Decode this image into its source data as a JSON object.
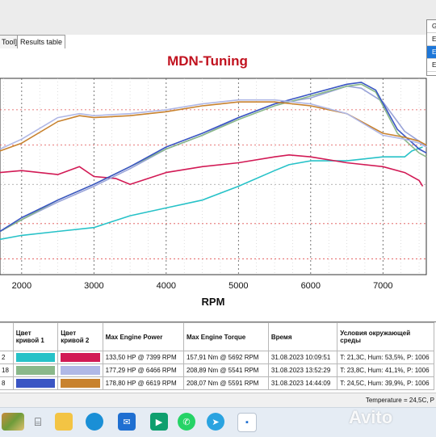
{
  "tabs": [
    "Tool]",
    "Results table"
  ],
  "right_panel": {
    "options": [
      "G",
      "E",
      "E",
      "E"
    ],
    "selected_index": 2
  },
  "chart_data": {
    "type": "line",
    "title": "MDN-Tuning",
    "xlabel": "RPM",
    "ylabel": "",
    "x_ticks": [
      2000,
      3000,
      4000,
      5000,
      6000,
      7000
    ],
    "xlim": [
      1700,
      7600
    ],
    "ylim": [
      0,
      100
    ],
    "grid": true,
    "series": [
      {
        "color": "#27c2c8",
        "x": [
          1700,
          2000,
          2500,
          3000,
          3500,
          4000,
          4500,
          5000,
          5500,
          5700,
          6000,
          6500,
          7000,
          7300,
          7400,
          7550
        ],
        "y": [
          18,
          20,
          22,
          24,
          30,
          34,
          38,
          45,
          53,
          56,
          58,
          58,
          60,
          60,
          63,
          65
        ]
      },
      {
        "color": "#d21a55",
        "x": [
          1700,
          2000,
          2500,
          2800,
          3000,
          3300,
          3500,
          4000,
          4500,
          5000,
          5500,
          5700,
          6000,
          6500,
          7000,
          7300,
          7500,
          7550
        ],
        "y": [
          52,
          53,
          51,
          55,
          50,
          49,
          46,
          52,
          55,
          57,
          60,
          61,
          60,
          57,
          55,
          52,
          48,
          45
        ]
      },
      {
        "color": "#9aa4d9",
        "x": [
          1700,
          2000,
          2500,
          3000,
          3500,
          4000,
          4500,
          5000,
          5500,
          6000,
          6500,
          6700,
          7000,
          7300,
          7500,
          7600
        ],
        "y": [
          22,
          28,
          37,
          45,
          54,
          64,
          71,
          80,
          87,
          90,
          96,
          95,
          88,
          73,
          68,
          65
        ]
      },
      {
        "color": "#8ab88a",
        "x": [
          1700,
          2000,
          2500,
          3000,
          3500,
          4000,
          4500,
          5000,
          5500,
          6000,
          6500,
          6700,
          6900,
          7200,
          7500,
          7600
        ],
        "y": [
          22,
          28,
          38,
          46,
          55,
          64,
          71,
          79,
          86,
          91,
          96,
          97,
          93,
          72,
          62,
          60
        ]
      },
      {
        "color": "#3a55c4",
        "x": [
          1700,
          2000,
          2500,
          3000,
          3500,
          4000,
          4500,
          5000,
          5500,
          6000,
          6500,
          6700,
          6900,
          7200,
          7500,
          7600
        ],
        "y": [
          22,
          29,
          38,
          46,
          55,
          65,
          72,
          80,
          87,
          92,
          97,
          98,
          94,
          74,
          64,
          62
        ]
      },
      {
        "color": "#c8822e",
        "x": [
          1700,
          2000,
          2500,
          2800,
          3000,
          3500,
          4000,
          4500,
          5000,
          5500,
          6000,
          6500,
          7000,
          7300,
          7500,
          7600
        ],
        "y": [
          63,
          67,
          78,
          81,
          80,
          81,
          83,
          86,
          88,
          88,
          86,
          82,
          72,
          70,
          68,
          66
        ]
      },
      {
        "color": "#b0b8e6",
        "x": [
          1700,
          2000,
          2500,
          2800,
          3000,
          3500,
          4000,
          4500,
          5000,
          5500,
          6000,
          6500,
          7000,
          7300,
          7500,
          7600
        ],
        "y": [
          64,
          69,
          80,
          82,
          81,
          82,
          84,
          87,
          89,
          89,
          87,
          82,
          71,
          69,
          67,
          65
        ]
      }
    ]
  },
  "results_table": {
    "headers": [
      "",
      "Цвет кривой 1",
      "Цвет кривой 2",
      "Max Engine Power",
      "Max Engine Torque",
      "Время",
      "Условия окружающей среды"
    ],
    "rows": [
      {
        "id": "2",
        "color1": "#27c2c8",
        "color2": "#d21a55",
        "power": "133,50 HP @ 7399 RPM",
        "torque": "157,91 Nm @ 5692 RPM",
        "time": "31.08.2023 10:09:51",
        "conditions": "T: 21,3C, Hum: 53,5%, P: 1006"
      },
      {
        "id": "18",
        "color1": "#8ab88a",
        "color2": "#b0b8e6",
        "power": "177,29 HP @ 6466 RPM",
        "torque": "208,89 Nm @ 5541 RPM",
        "time": "31.08.2023 13:52:29",
        "conditions": "T: 23,8C, Hum: 41,1%, P: 1006"
      },
      {
        "id": "8",
        "color1": "#3a55c4",
        "color2": "#c8822e",
        "power": "178,80 HP @ 6619 RPM",
        "torque": "208,07 Nm @ 5591 RPM",
        "time": "31.08.2023 14:44:09",
        "conditions": "T: 24,5C, Hum: 39,9%, P: 1006"
      }
    ]
  },
  "status": {
    "temperature": "Temperature = 24,5C, P"
  },
  "taskbar": {
    "icons": [
      "photo-thumbnail-icon",
      "terminal-icon",
      "folder-icon",
      "edge-browser-icon",
      "mail-icon",
      "meet-icon",
      "whatsapp-icon",
      "telegram-icon",
      "dyno-app-icon"
    ],
    "colors": {
      "folder": "#f3c444",
      "edge": "#1a8fd6",
      "mail": "#1f6fd1",
      "meet": "#0e9f6e",
      "whatsapp": "#25d366",
      "telegram": "#2aa3e0"
    }
  },
  "watermark": "Avito"
}
